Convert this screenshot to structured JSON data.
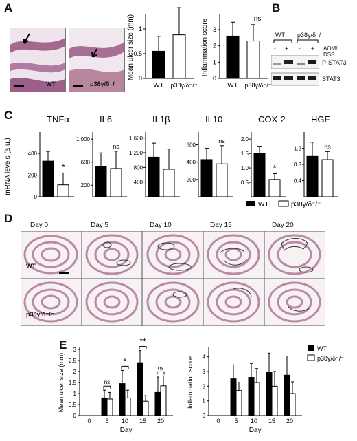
{
  "panels": {
    "A": {
      "letter": "A",
      "image_labels": [
        "WT",
        "p38γ/δ⁻/⁻"
      ],
      "ulcer_chart": {
        "ylabel": "Mean ulcer size (mm)",
        "ticks": [
          "0",
          "0.5",
          "1"
        ],
        "categories": [
          "WT",
          "p38γ/δ⁻/⁻"
        ],
        "values": [
          0.55,
          0.88
        ],
        "errors": [
          0.3,
          0.55
        ],
        "ylim": [
          0,
          1.25
        ],
        "sig": "ns"
      },
      "inflam_chart": {
        "ylabel": "Inflammation score",
        "ticks": [
          "0",
          "1",
          "2",
          "3"
        ],
        "categories": [
          "WT",
          "p38γ/δ⁻/⁻"
        ],
        "values": [
          2.6,
          2.3
        ],
        "errors": [
          0.85,
          1.0
        ],
        "ylim": [
          0,
          3.8
        ],
        "sig": "ns"
      }
    },
    "B": {
      "letter": "B",
      "groups": [
        "WT",
        "p38γ/δ⁻/⁻"
      ],
      "treatment": "AOM/\nDSS",
      "lanes": [
        "-",
        "+",
        "-",
        "+"
      ],
      "bands": [
        "P-STAT3",
        "STAT3"
      ]
    },
    "C": {
      "letter": "C",
      "ylabel": "mRNA levels (a.u.)",
      "legend": [
        "WT",
        "p38γ/δ⁻/⁻"
      ],
      "genes": [
        {
          "name": "TNFα",
          "ticks": [
            "0",
            "200",
            "400"
          ],
          "tickvals": [
            0,
            200,
            400
          ],
          "ylim": [
            0,
            560
          ],
          "values": [
            330,
            110
          ],
          "errors": [
            90,
            110
          ],
          "sig": "*"
        },
        {
          "name": "IL6",
          "ticks": [
            "200",
            "600",
            "1,000"
          ],
          "tickvals": [
            200,
            600,
            1000
          ],
          "ylim": [
            0,
            1050
          ],
          "values": [
            530,
            490
          ],
          "errors": [
            230,
            300
          ],
          "sig": "ns"
        },
        {
          "name": "IL1β",
          "ticks": [
            "400",
            "800",
            "1,200",
            "1,600"
          ],
          "tickvals": [
            400,
            800,
            1200,
            1600
          ],
          "ylim": [
            0,
            1650
          ],
          "values": [
            1080,
            750
          ],
          "errors": [
            380,
            550
          ],
          "sig": ""
        },
        {
          "name": "IL10",
          "ticks": [
            "200",
            "400",
            "600"
          ],
          "tickvals": [
            200,
            400,
            600
          ],
          "ylim": [
            0,
            700
          ],
          "values": [
            430,
            380
          ],
          "errors": [
            130,
            210
          ],
          "sig": "ns"
        },
        {
          "name": "COX-2",
          "ticks": [
            "0.5",
            "1.0",
            "1.5",
            "2.0"
          ],
          "tickvals": [
            0.5,
            1.0,
            1.5,
            2.0
          ],
          "ylim": [
            0,
            2.1
          ],
          "values": [
            1.5,
            0.6
          ],
          "errors": [
            0.25,
            0.2
          ],
          "sig": "*"
        },
        {
          "name": "HGF",
          "ticks": [
            "0.4",
            "0.8",
            "1.2"
          ],
          "tickvals": [
            0.4,
            0.8,
            1.2
          ],
          "ylim": [
            0,
            1.5
          ],
          "values": [
            1.0,
            0.92
          ],
          "errors": [
            0.35,
            0.2
          ],
          "sig": "ns"
        }
      ]
    },
    "D": {
      "letter": "D",
      "days": [
        "Day 0",
        "Day 5",
        "Day 10",
        "Day 15",
        "Day 20"
      ],
      "rows": [
        "WT",
        "p38γ/δ⁻/⁻"
      ]
    },
    "E": {
      "letter": "E",
      "legend": [
        "WT",
        "p38γ/δ⁻/⁻"
      ],
      "xlabel": "Day",
      "ulcer": {
        "ylabel": "Mean ulcer size (mm)",
        "x": [
          "0",
          "5",
          "10",
          "15",
          "20"
        ],
        "ticks": [
          "0",
          "0.5",
          "1",
          "1.5",
          "2",
          "2.5",
          "3"
        ],
        "ylim": [
          0,
          3
        ],
        "wt": [
          0,
          0.8,
          1.45,
          2.4,
          1.05
        ],
        "ko": [
          0,
          0.75,
          0.8,
          0.65,
          1.35
        ],
        "wt_err": [
          0,
          0.35,
          0.6,
          0.55,
          0.7
        ],
        "ko_err": [
          0,
          0.3,
          0.35,
          0.25,
          0.45
        ],
        "sig": [
          "",
          "ns",
          "*",
          "**",
          "ns"
        ]
      },
      "inflam": {
        "ylabel": "Inflammation score",
        "x": [
          "0",
          "5",
          "10",
          "15",
          "20"
        ],
        "ticks": [
          "0",
          "1",
          "2",
          "3",
          "4"
        ],
        "ylim": [
          0,
          4.5
        ],
        "wt": [
          0,
          2.5,
          2.6,
          2.95,
          2.75
        ],
        "ko": [
          0,
          1.7,
          2.25,
          2.0,
          1.5
        ],
        "wt_err": [
          0,
          0.95,
          0.95,
          1.3,
          1.3
        ],
        "ko_err": [
          0,
          0.55,
          0.95,
          1.0,
          0.8
        ]
      }
    }
  },
  "chart_data": [
    {
      "type": "bar",
      "ylabel": "Mean ulcer size (mm)",
      "categories": [
        "WT",
        "p38γ/δ⁻/⁻"
      ],
      "values": [
        0.55,
        0.88
      ],
      "ylim": [
        0,
        1.25
      ]
    },
    {
      "type": "bar",
      "ylabel": "Inflammation score",
      "categories": [
        "WT",
        "p38γ/δ⁻/⁻"
      ],
      "values": [
        2.6,
        2.3
      ],
      "ylim": [
        0,
        3.8
      ]
    },
    {
      "type": "bar",
      "ylabel": "mRNA levels (a.u.)",
      "categories": [
        "TNFα",
        "IL6",
        "IL1β",
        "IL10",
        "COX-2",
        "HGF"
      ],
      "series": [
        {
          "name": "WT",
          "values": [
            330,
            530,
            1080,
            430,
            1.5,
            1.0
          ]
        },
        {
          "name": "p38γ/δ⁻/⁻",
          "values": [
            110,
            490,
            750,
            380,
            0.6,
            0.92
          ]
        }
      ]
    },
    {
      "type": "bar",
      "ylabel": "Mean ulcer size (mm)",
      "xlabel": "Day",
      "categories": [
        "0",
        "5",
        "10",
        "15",
        "20"
      ],
      "series": [
        {
          "name": "WT",
          "values": [
            0,
            0.8,
            1.45,
            2.4,
            1.05
          ]
        },
        {
          "name": "p38γ/δ⁻/⁻",
          "values": [
            0,
            0.75,
            0.8,
            0.65,
            1.35
          ]
        }
      ],
      "ylim": [
        0,
        3
      ]
    },
    {
      "type": "bar",
      "ylabel": "Inflammation score",
      "xlabel": "Day",
      "categories": [
        "0",
        "5",
        "10",
        "15",
        "20"
      ],
      "series": [
        {
          "name": "WT",
          "values": [
            0,
            2.5,
            2.6,
            2.95,
            2.75
          ]
        },
        {
          "name": "p38γ/δ⁻/⁻",
          "values": [
            0,
            1.7,
            2.25,
            2.0,
            1.5
          ]
        }
      ],
      "ylim": [
        0,
        4.5
      ]
    }
  ]
}
